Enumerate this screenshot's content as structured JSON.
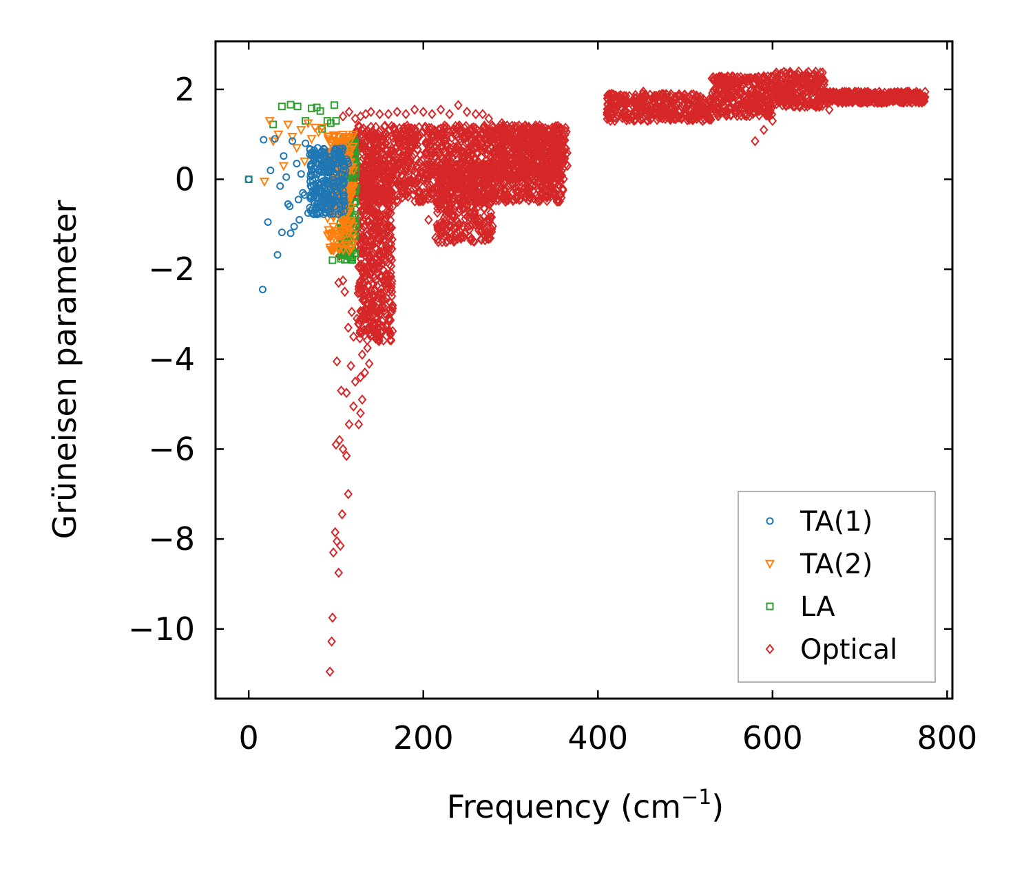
{
  "chart_data": {
    "type": "scatter",
    "title": "",
    "xlabel": "Frequency (cm",
    "xlabel_sup": "−1",
    "xlabel_suffix": ")",
    "ylabel": "Grüneisen parameter",
    "xlim": [
      -38,
      806
    ],
    "ylim": [
      -11.55,
      3.07
    ],
    "xticks": [
      0,
      200,
      400,
      600,
      800
    ],
    "xtick_labels": [
      "0",
      "200",
      "400",
      "600",
      "800"
    ],
    "yticks": [
      2,
      0,
      -2,
      -4,
      -6,
      -8,
      -10
    ],
    "ytick_labels": [
      "2",
      "0",
      "−2",
      "−4",
      "−6",
      "−8",
      "−10"
    ],
    "grid": false,
    "legend_position": "lower-right",
    "series": [
      {
        "name": "TA(1)",
        "marker": "circle",
        "color": "#1f77b4",
        "points": [
          [
            0,
            0
          ],
          [
            16,
            -2.45
          ],
          [
            17,
            0.88
          ],
          [
            25,
            0.2
          ],
          [
            30,
            0.9
          ],
          [
            33,
            -1.68
          ],
          [
            36,
            -0.15
          ],
          [
            38,
            -1.18
          ],
          [
            40,
            0.52
          ],
          [
            43,
            0.05
          ],
          [
            47,
            -0.6
          ],
          [
            48,
            -1.2
          ],
          [
            50,
            0.85
          ],
          [
            52,
            -1.05
          ],
          [
            55,
            0.35
          ],
          [
            58,
            -0.9
          ],
          [
            60,
            0.12
          ],
          [
            62,
            -0.3
          ],
          [
            65,
            0.8
          ],
          [
            68,
            -0.75
          ],
          [
            70,
            0.55
          ],
          [
            72,
            -0.4
          ],
          [
            75,
            0.65
          ],
          [
            78,
            -0.55
          ],
          [
            80,
            0.2
          ],
          [
            82,
            0.45
          ],
          [
            84,
            -0.2
          ],
          [
            86,
            0.6
          ],
          [
            88,
            -0.6
          ],
          [
            90,
            0.3
          ],
          [
            92,
            -0.1
          ],
          [
            94,
            0.5
          ],
          [
            96,
            0.05
          ],
          [
            98,
            0.4
          ],
          [
            100,
            -0.3
          ],
          [
            102,
            0.25
          ],
          [
            104,
            -0.4
          ],
          [
            106,
            0.1
          ],
          [
            108,
            -0.25
          ],
          [
            110,
            0.3
          ],
          [
            112,
            0.45
          ],
          [
            114,
            0.35
          ],
          [
            22,
            -0.95
          ],
          [
            45,
            -0.55
          ],
          [
            57,
            -0.45
          ],
          [
            64,
            -0.35
          ],
          [
            73,
            -0.65
          ],
          [
            79,
            0.7
          ],
          [
            85,
            -0.5
          ],
          [
            91,
            0.15
          ],
          [
            97,
            -0.15
          ],
          [
            103,
            0.55
          ],
          [
            107,
            0.0
          ],
          [
            111,
            0.2
          ],
          [
            113,
            0.4
          ]
        ],
        "cluster": {
          "x": [
            70,
            110
          ],
          "y": [
            -0.8,
            0.7
          ],
          "count": 220
        }
      },
      {
        "name": "TA(2)",
        "marker": "triangle-down",
        "color": "#ff7f0e",
        "points": [
          [
            18,
            -0.05
          ],
          [
            24,
            1.3
          ],
          [
            28,
            0.85
          ],
          [
            34,
            1.0
          ],
          [
            40,
            0.3
          ],
          [
            45,
            1.22
          ],
          [
            50,
            0.95
          ],
          [
            55,
            0.7
          ],
          [
            60,
            1.1
          ],
          [
            64,
            0.4
          ],
          [
            68,
            1.25
          ],
          [
            72,
            0.9
          ],
          [
            76,
            1.15
          ],
          [
            80,
            1.05
          ],
          [
            84,
            1.15
          ],
          [
            88,
            0.55
          ],
          [
            92,
            0.95
          ],
          [
            96,
            -0.5
          ],
          [
            98,
            -1.5
          ],
          [
            100,
            0.3
          ],
          [
            102,
            -0.3
          ],
          [
            104,
            0.85
          ],
          [
            106,
            0.0
          ],
          [
            108,
            -0.9
          ],
          [
            110,
            0.3
          ],
          [
            112,
            -0.2
          ],
          [
            114,
            0.6
          ],
          [
            116,
            0.2
          ]
        ],
        "cluster": {
          "x": [
            90,
            120
          ],
          "y": [
            -1.6,
            1.0
          ],
          "count": 200
        }
      },
      {
        "name": "LA",
        "marker": "square",
        "color": "#2ca02c",
        "points": [
          [
            0,
            0
          ],
          [
            28,
            1.22
          ],
          [
            38,
            1.62
          ],
          [
            48,
            1.66
          ],
          [
            56,
            1.62
          ],
          [
            65,
            1.3
          ],
          [
            72,
            1.58
          ],
          [
            78,
            1.6
          ],
          [
            82,
            1.52
          ],
          [
            84,
            1.12
          ],
          [
            90,
            1.3
          ],
          [
            94,
            1.25
          ],
          [
            98,
            1.65
          ],
          [
            100,
            1.3
          ],
          [
            104,
            0.8
          ],
          [
            108,
            0.5
          ],
          [
            110,
            -0.6
          ],
          [
            112,
            -1.2
          ],
          [
            114,
            -0.4
          ],
          [
            116,
            -1.7
          ],
          [
            118,
            -0.2
          ],
          [
            120,
            -1.0
          ],
          [
            96,
            -1.8
          ],
          [
            106,
            -1.5
          ]
        ],
        "cluster": {
          "x": [
            105,
            123
          ],
          "y": [
            -1.8,
            0.9
          ],
          "count": 180
        }
      },
      {
        "name": "Optical",
        "marker": "diamond",
        "color": "#d62728",
        "points": [
          [
            93,
            -10.95
          ],
          [
            95,
            -10.28
          ],
          [
            96,
            -9.75
          ],
          [
            97,
            -8.3
          ],
          [
            99,
            -7.85
          ],
          [
            101,
            -8.05
          ],
          [
            103,
            -8.75
          ],
          [
            105,
            -8.15
          ],
          [
            107,
            -7.45
          ],
          [
            114,
            -7.0
          ],
          [
            100,
            -5.9
          ],
          [
            104,
            -5.8
          ],
          [
            108,
            -6.0
          ],
          [
            112,
            -6.15
          ],
          [
            115,
            -5.45
          ],
          [
            120,
            -5.05
          ],
          [
            126,
            -5.45
          ],
          [
            128,
            -5.2
          ],
          [
            130,
            -4.9
          ],
          [
            101,
            -4.05
          ],
          [
            106,
            -4.7
          ],
          [
            112,
            -4.75
          ],
          [
            117,
            -4.15
          ],
          [
            122,
            -4.5
          ],
          [
            128,
            -4.4
          ],
          [
            133,
            -4.3
          ],
          [
            138,
            -4.1
          ],
          [
            103,
            -2.3
          ],
          [
            108,
            -2.25
          ],
          [
            110,
            -2.5
          ],
          [
            114,
            -3.3
          ],
          [
            118,
            -2.95
          ],
          [
            120,
            -3.5
          ],
          [
            124,
            -3.1
          ],
          [
            130,
            -3.9
          ],
          [
            136,
            -3.75
          ],
          [
            141,
            -3.3
          ],
          [
            104,
            -1.7
          ],
          [
            108,
            1.4
          ],
          [
            115,
            1.5
          ],
          [
            122,
            1.35
          ],
          [
            128,
            1.4
          ],
          [
            134,
            1.45
          ],
          [
            140,
            1.5
          ],
          [
            150,
            1.45
          ],
          [
            160,
            1.45
          ],
          [
            170,
            1.5
          ],
          [
            180,
            1.45
          ],
          [
            190,
            1.55
          ],
          [
            200,
            1.5
          ],
          [
            210,
            1.45
          ],
          [
            220,
            1.55
          ],
          [
            230,
            1.45
          ],
          [
            240,
            1.65
          ],
          [
            250,
            1.5
          ],
          [
            260,
            1.45
          ],
          [
            268,
            1.45
          ],
          [
            275,
            1.35
          ],
          [
            285,
            1.0
          ],
          [
            290,
            1.25
          ],
          [
            300,
            0.85
          ],
          [
            250,
            -0.6
          ],
          [
            262,
            -0.4
          ],
          [
            270,
            -0.1
          ],
          [
            278,
            -0.5
          ],
          [
            226,
            -1.4
          ],
          [
            232,
            -1.2
          ],
          [
            214,
            -1.3
          ],
          [
            236,
            -1.1
          ],
          [
            206,
            -0.9
          ],
          [
            254,
            -0.6
          ],
          [
            192,
            0.9
          ],
          [
            182,
            0.6
          ],
          [
            170,
            -0.1
          ],
          [
            165,
            -0.6
          ],
          [
            240,
            -0.3
          ],
          [
            330,
            0.4
          ],
          [
            345,
            0.2
          ],
          [
            350,
            0.1
          ],
          [
            355,
            0.3
          ],
          [
            360,
            0.35
          ],
          [
            365,
            0.3
          ],
          [
            420,
            1.5
          ],
          [
            440,
            1.45
          ],
          [
            452,
            1.95
          ],
          [
            460,
            1.55
          ],
          [
            470,
            1.75
          ],
          [
            480,
            1.55
          ],
          [
            500,
            1.45
          ],
          [
            520,
            1.3
          ],
          [
            535,
            2.0
          ],
          [
            545,
            2.25
          ],
          [
            555,
            1.95
          ],
          [
            565,
            1.7
          ],
          [
            580,
            0.85
          ],
          [
            590,
            1.1
          ],
          [
            600,
            1.3
          ],
          [
            610,
            1.95
          ],
          [
            620,
            2.05
          ],
          [
            630,
            2.4
          ],
          [
            640,
            2.3
          ],
          [
            650,
            1.65
          ],
          [
            665,
            1.55
          ],
          [
            680,
            1.7
          ],
          [
            700,
            1.8
          ],
          [
            720,
            1.85
          ],
          [
            740,
            1.9
          ],
          [
            760,
            1.85
          ],
          [
            770,
            1.85
          ]
        ],
        "clusters": [
          {
            "x": [
              115,
              360
            ],
            "y": [
              -0.5,
              1.2
            ],
            "count": 1400
          },
          {
            "x": [
              125,
              165
            ],
            "y": [
              -3.6,
              0.3
            ],
            "count": 500
          },
          {
            "x": [
              215,
              280
            ],
            "y": [
              -1.4,
              0.4
            ],
            "count": 300
          },
          {
            "x": [
              285,
              365
            ],
            "y": [
              0.0,
              1.2
            ],
            "count": 300
          },
          {
            "x": [
              410,
              530
            ],
            "y": [
              1.3,
              1.9
            ],
            "count": 350
          },
          {
            "x": [
              530,
              600
            ],
            "y": [
              1.4,
              2.3
            ],
            "count": 300
          },
          {
            "x": [
              600,
              660
            ],
            "y": [
              1.6,
              2.4
            ],
            "count": 250
          },
          {
            "x": [
              660,
              775
            ],
            "y": [
              1.7,
              1.95
            ],
            "count": 400
          }
        ]
      }
    ]
  }
}
